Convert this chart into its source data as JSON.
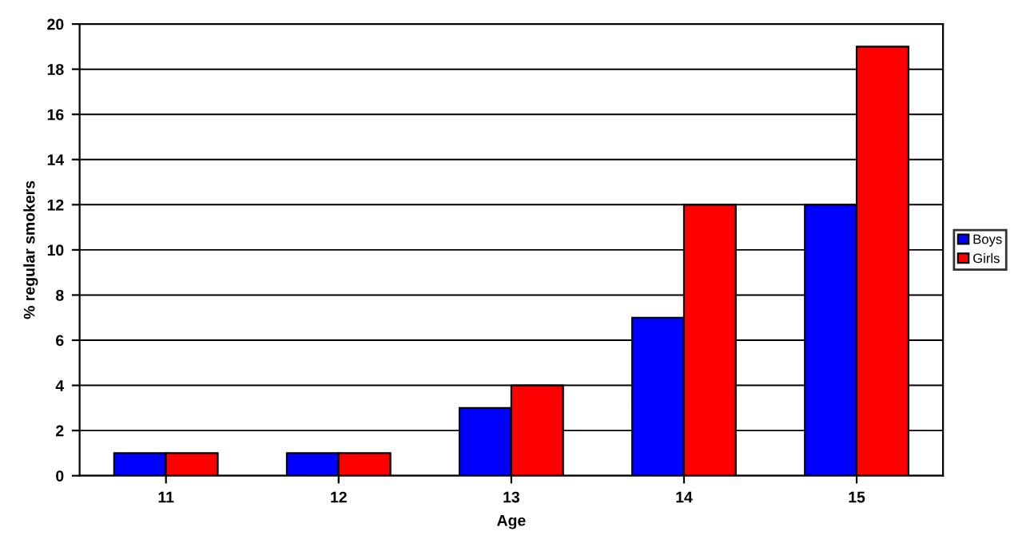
{
  "chart_data": {
    "type": "bar",
    "xlabel": "Age",
    "ylabel": "% regular smokers",
    "categories": [
      "11",
      "12",
      "13",
      "14",
      "15"
    ],
    "series": [
      {
        "name": "Boys",
        "color": "#0000ff",
        "values": [
          1,
          1,
          3,
          7,
          12
        ]
      },
      {
        "name": "Girls",
        "color": "#ff0000",
        "values": [
          1,
          1,
          4,
          12,
          19
        ]
      }
    ],
    "ylim": [
      0,
      20
    ],
    "yticks": [
      0,
      2,
      4,
      6,
      8,
      10,
      12,
      14,
      16,
      18,
      20
    ],
    "grid": "y",
    "legend": "right"
  }
}
